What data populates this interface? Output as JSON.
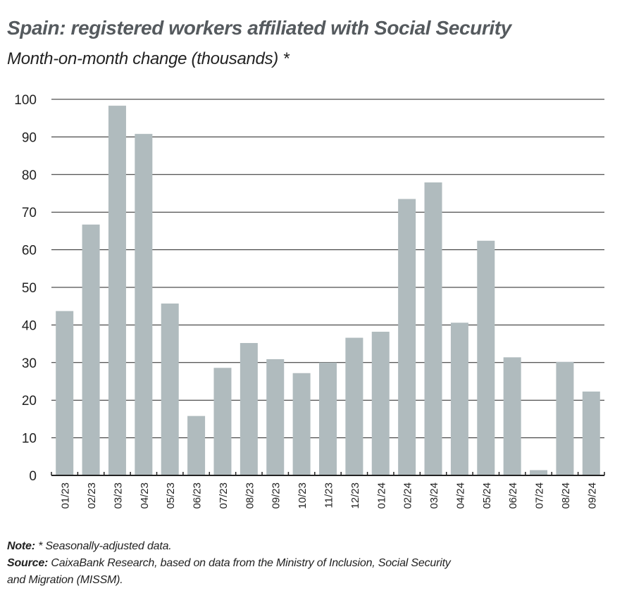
{
  "chart_data": {
    "type": "bar",
    "title": "Spain: registered workers affiliated with Social Security",
    "subtitle": "Month-on-month change (thousands) *",
    "xlabel": "",
    "ylabel": "",
    "ylim": [
      0,
      100
    ],
    "yticks": [
      0,
      10,
      20,
      30,
      40,
      50,
      60,
      70,
      80,
      90,
      100
    ],
    "grid": true,
    "bar_color": "#b0bbbe",
    "categories": [
      "01/23",
      "02/23",
      "03/23",
      "04/23",
      "05/23",
      "06/23",
      "07/23",
      "08/23",
      "09/23",
      "10/23",
      "11/23",
      "12/23",
      "01/24",
      "02/24",
      "03/24",
      "04/24",
      "05/24",
      "06/24",
      "07/24",
      "08/24",
      "09/24"
    ],
    "values": [
      43.7,
      66.7,
      98.3,
      90.8,
      45.7,
      15.8,
      28.6,
      35.2,
      30.9,
      27.2,
      30.0,
      36.6,
      38.2,
      73.5,
      77.9,
      40.6,
      62.4,
      31.4,
      1.4,
      30.2,
      22.3
    ]
  },
  "notes": {
    "note_label": "Note:",
    "note_text": " * Seasonally-adjusted data.",
    "source_label": "Source:",
    "source_text": " CaixaBank Research, based on data from the Ministry of Inclusion, Social Security",
    "source_text_2": "and Migration (MISSM)."
  }
}
